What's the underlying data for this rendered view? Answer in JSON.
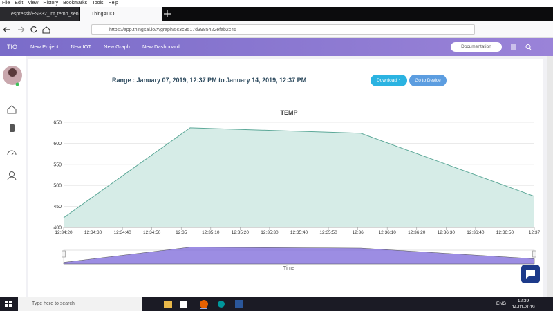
{
  "browser": {
    "menu": [
      "File",
      "Edit",
      "View",
      "History",
      "Bookmarks",
      "Tools",
      "Help"
    ],
    "tabs": [
      "espressif/ESP32_int_temp_sens...",
      "ThingAI.IO"
    ],
    "url": "https://app.thingsai.io/#/graph/5c3c3517d3985422efab2c45"
  },
  "app": {
    "brand": "TIO",
    "nav": [
      "New Project",
      "New IOT",
      "New Graph",
      "New Dashboard"
    ],
    "documentation": "Documentation"
  },
  "page": {
    "range": "Range : January 07, 2019, 12:37 PM to January 14, 2019, 12:37 PM",
    "download": "Download",
    "device": "Go to Device"
  },
  "chart_data": {
    "type": "area",
    "title": "TEMP",
    "x_label": "Time",
    "x": [
      "12:34:20",
      "12:35:03",
      "12:36:01",
      "12:37:00"
    ],
    "values": [
      423,
      637,
      624,
      474
    ],
    "color": "#5ca898",
    "fill": "#d6ece7",
    "xlim": [
      "12:34:20",
      "12:37:00"
    ],
    "xticks": [
      "12:34:20",
      "12:34:30",
      "12:34:40",
      "12:34:50",
      "12:35",
      "12:35:10",
      "12:35:20",
      "12:35:30",
      "12:35:40",
      "12:35:50",
      "12:36",
      "12:36:10",
      "12:36:20",
      "12:36:30",
      "12:36:40",
      "12:36:50",
      "12:37"
    ],
    "ylim": [
      400,
      650
    ],
    "yticks": [
      400,
      450,
      500,
      550,
      600,
      650
    ],
    "grid": true,
    "navigator_color": "#7b67d9"
  },
  "taskbar": {
    "search": "Type here to search",
    "lang": "ENG",
    "time": "12:39",
    "date": "14-01-2019"
  }
}
